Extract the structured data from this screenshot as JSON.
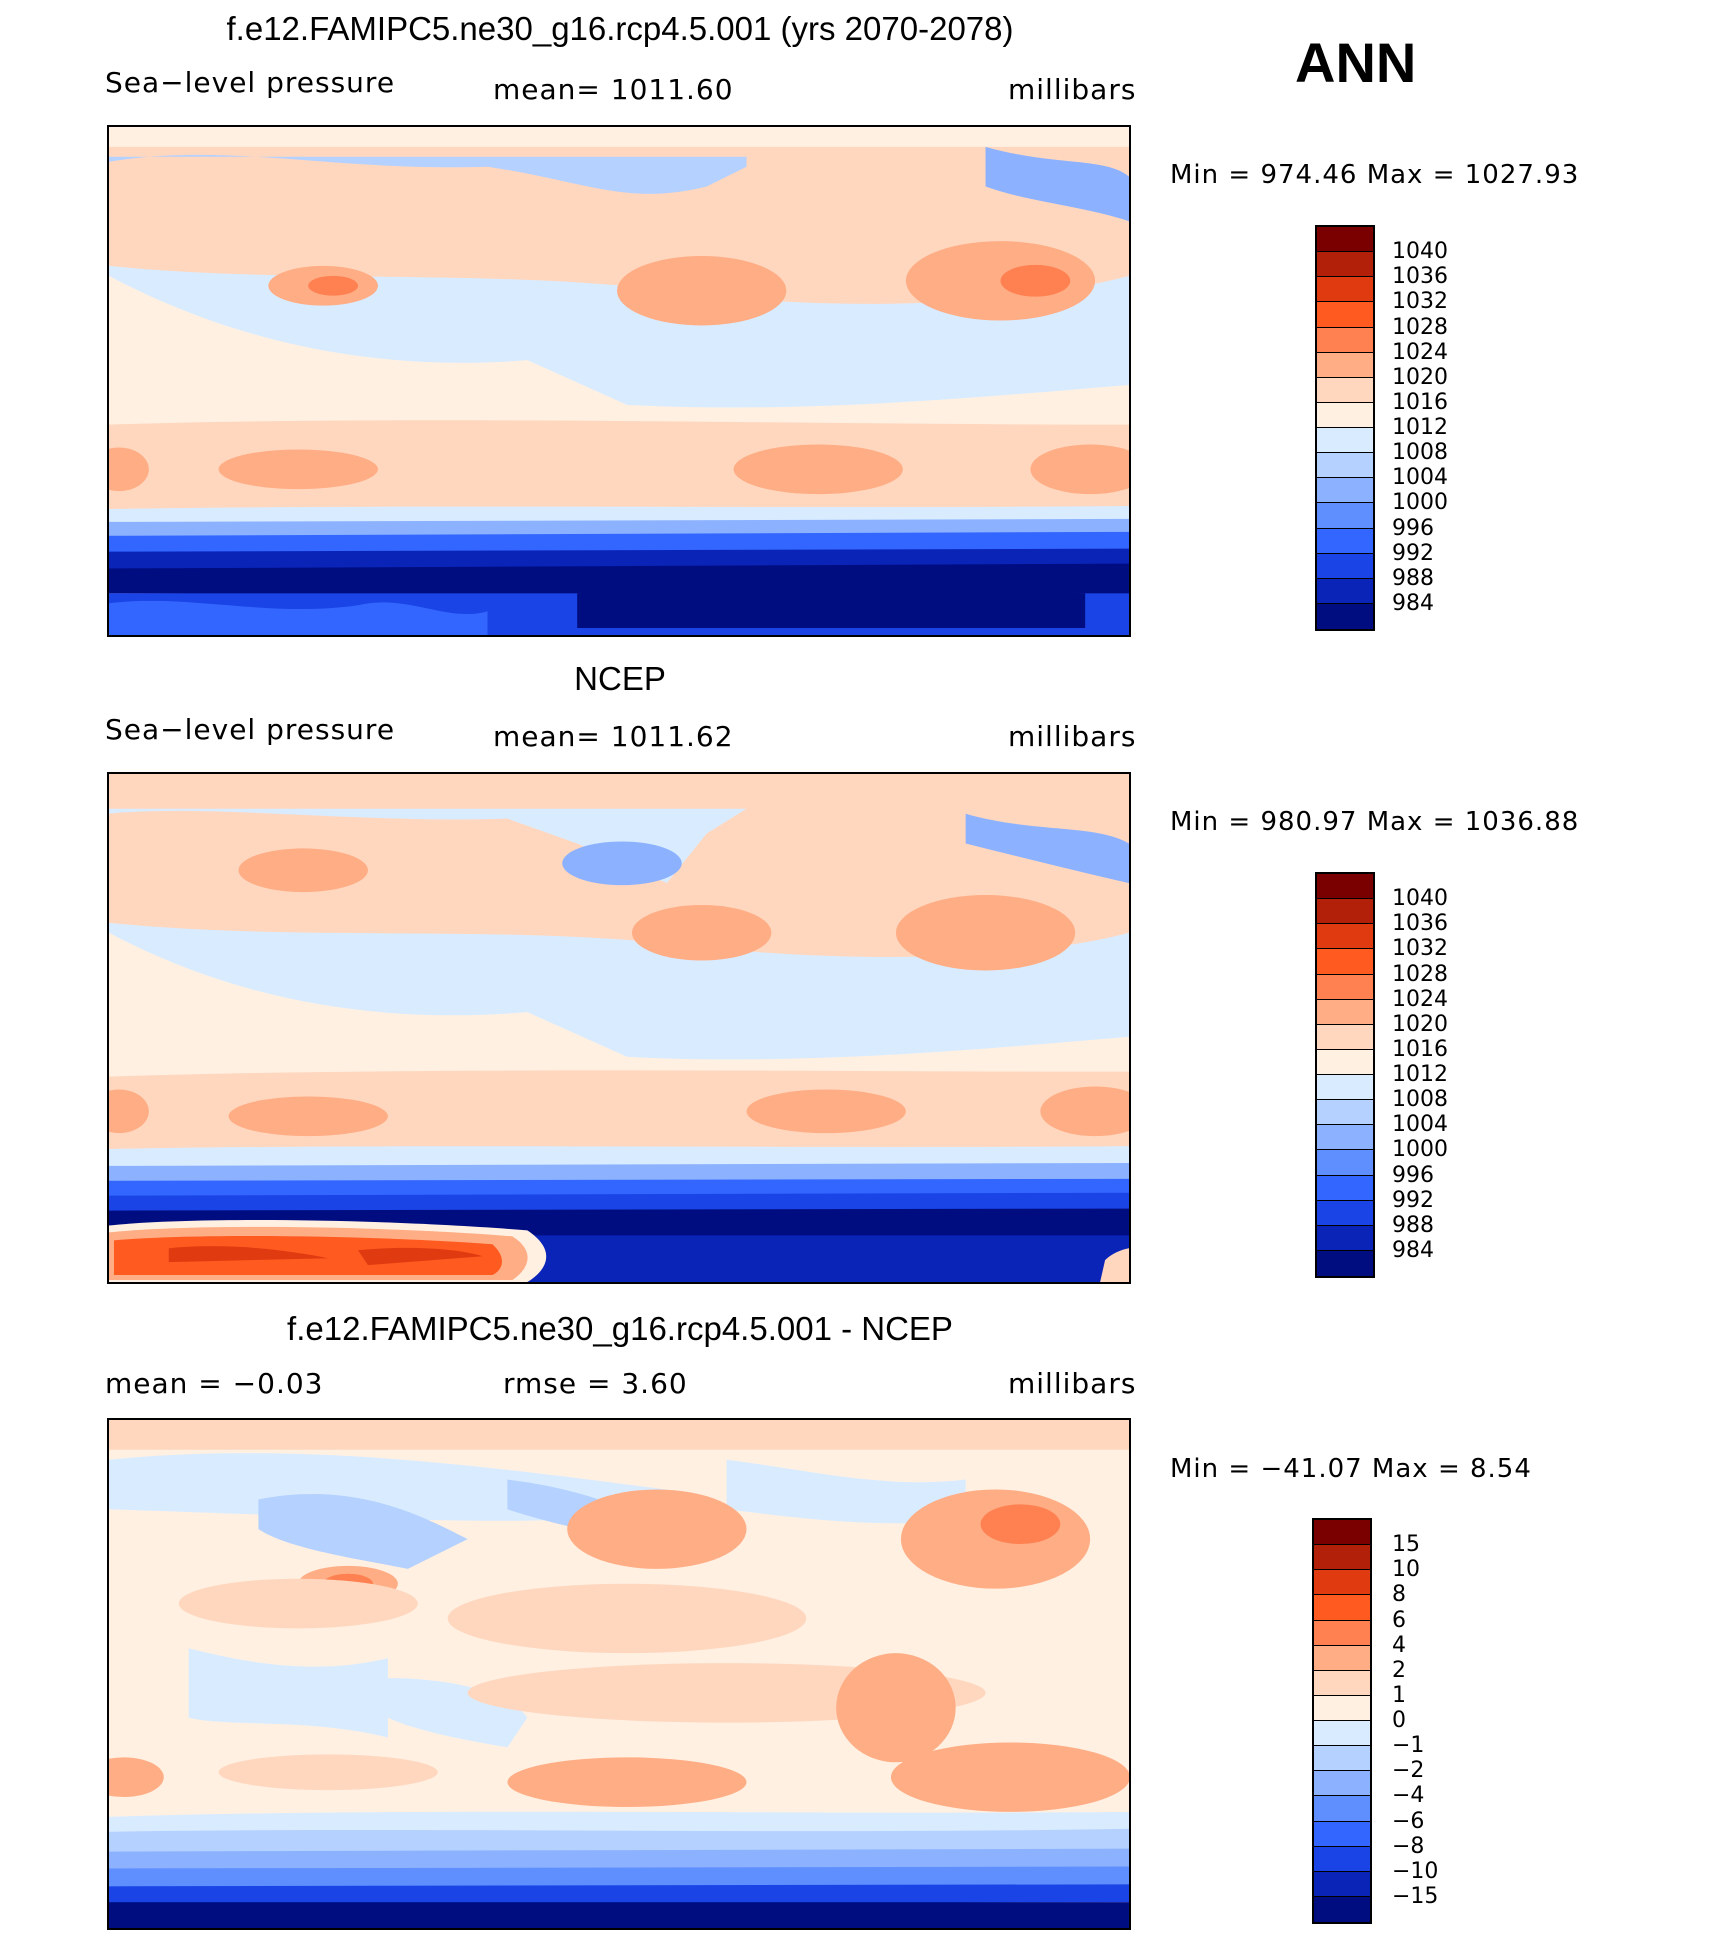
{
  "header": {
    "season": "ANN"
  },
  "panels": [
    {
      "id": "model",
      "title": "f.e12.FAMIPC5.ne30_g16.rcp4.5.001 (yrs 2070-2078)",
      "left_label": "Sea−level pressure",
      "center_label": "mean=  1011.60",
      "right_label": "millibars",
      "minmax": "Min  =  974.46  Max  =  1027.93",
      "colorbar_labels": [
        "1040",
        "1036",
        "1032",
        "1028",
        "1024",
        "1020",
        "1016",
        "1012",
        "1008",
        "1004",
        "1000",
        "996",
        "992",
        "988",
        "984"
      ]
    },
    {
      "id": "obs",
      "title": "NCEP",
      "left_label": "Sea−level pressure",
      "center_label": "mean=  1011.62",
      "right_label": "millibars",
      "minmax": "Min  =  980.97  Max  =  1036.88",
      "colorbar_labels": [
        "1040",
        "1036",
        "1032",
        "1028",
        "1024",
        "1020",
        "1016",
        "1012",
        "1008",
        "1004",
        "1000",
        "996",
        "992",
        "988",
        "984"
      ]
    },
    {
      "id": "diff",
      "title": "f.e12.FAMIPC5.ne30_g16.rcp4.5.001 - NCEP",
      "left_label": "mean  =    −0.03",
      "center_label": "rmse  =      3.60",
      "right_label": "millibars",
      "minmax": "Min  = −41.07  Max  =       8.54",
      "colorbar_labels": [
        "15",
        "10",
        "8",
        "6",
        "4",
        "2",
        "1",
        "0",
        "−1",
        "−2",
        "−4",
        "−6",
        "−8",
        "−10",
        "−15"
      ]
    }
  ],
  "colors": {
    "abs_scale": [
      "#7a0000",
      "#b3200a",
      "#e03a10",
      "#ff5a20",
      "#ff8050",
      "#ffad85",
      "#ffd7bf",
      "#fff0e2",
      "#d9ecff",
      "#b5d1ff",
      "#8cb2ff",
      "#5f8eff",
      "#3366ff",
      "#1a44e6",
      "#0a24b8",
      "#000d80"
    ],
    "diff_scale": [
      "#7a0000",
      "#b3200a",
      "#e03a10",
      "#ff5a20",
      "#ff8050",
      "#ffad85",
      "#ffd7bf",
      "#fff0e2",
      "#d9ecff",
      "#b5d1ff",
      "#8cb2ff",
      "#5f8eff",
      "#3366ff",
      "#1a44e6",
      "#0a24b8",
      "#000d80"
    ]
  }
}
